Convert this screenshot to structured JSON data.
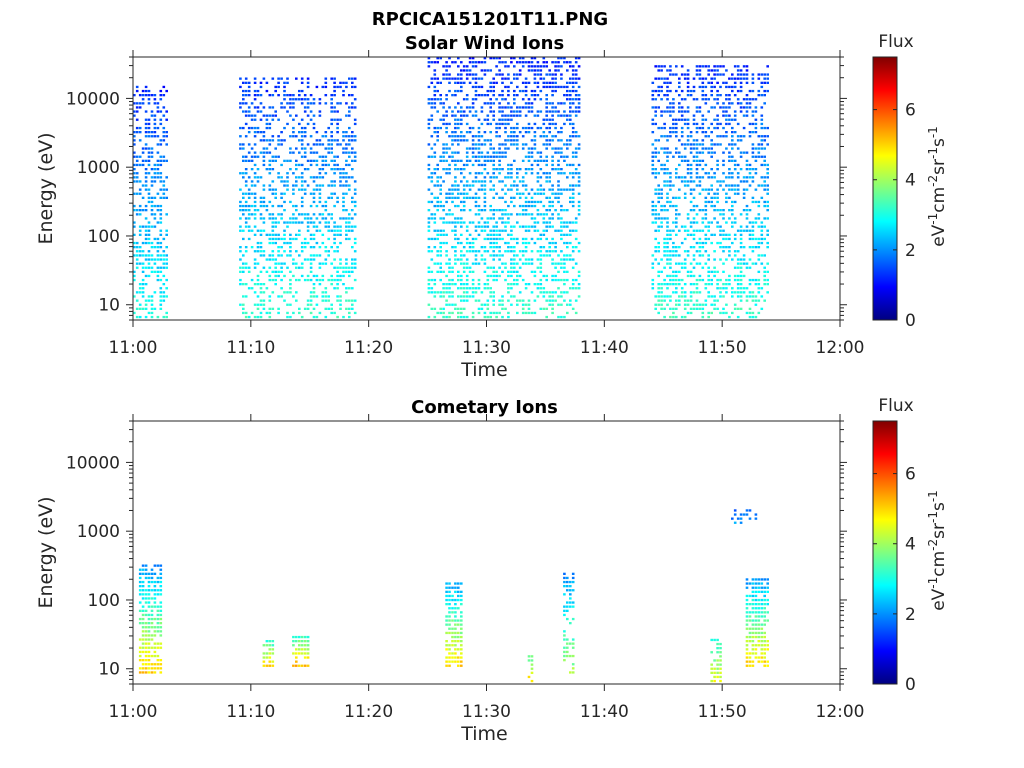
{
  "figure_title": "RPCICA151201T11.PNG",
  "chart_data": [
    {
      "type": "heatmap",
      "title": "Solar Wind Ions",
      "xlabel": "Time",
      "ylabel": "Energy (eV)",
      "y_scale": "log",
      "ylim": [
        6,
        40000
      ],
      "xlim": [
        "11:00",
        "12:00"
      ],
      "x_ticks": [
        "11:00",
        "11:10",
        "11:20",
        "11:30",
        "11:40",
        "11:50",
        "12:00"
      ],
      "y_ticks": [
        "10",
        "100",
        "1000",
        "10000"
      ],
      "colorbar": {
        "title": "Flux",
        "label": "eV-1cm-2sr-1s-1",
        "label_parts": [
          "eV",
          "-1",
          "cm",
          "-2",
          "sr",
          "-1",
          "s",
          "-1"
        ],
        "range": [
          0,
          7.5
        ],
        "ticks": [
          "0",
          "2",
          "4",
          "6"
        ],
        "colormap": "jet"
      },
      "activity": [
        {
          "start": "11:00",
          "end": "11:03",
          "e_min": 6,
          "e_max": 14000,
          "flux_high": 3.0,
          "flux_low": 1.2,
          "density": 0.5
        },
        {
          "start": "11:09",
          "end": "11:19",
          "e_min": 6,
          "e_max": 20000,
          "flux_high": 3.2,
          "flux_low": 1.2,
          "density": 0.42
        },
        {
          "start": "11:25",
          "end": "11:38",
          "e_min": 6,
          "e_max": 35000,
          "flux_high": 3.2,
          "flux_low": 1.2,
          "density": 0.5
        },
        {
          "start": "11:44",
          "end": "11:54",
          "e_min": 6,
          "e_max": 28000,
          "flux_high": 3.2,
          "flux_low": 1.2,
          "density": 0.48
        }
      ]
    },
    {
      "type": "heatmap",
      "title": "Cometary Ions",
      "xlabel": "Time",
      "ylabel": "Energy (eV)",
      "y_scale": "log",
      "ylim": [
        6,
        40000
      ],
      "xlim": [
        "11:00",
        "12:00"
      ],
      "x_ticks": [
        "11:00",
        "11:10",
        "11:20",
        "11:30",
        "11:40",
        "11:50",
        "12:00"
      ],
      "y_ticks": [
        "10",
        "100",
        "1000",
        "10000"
      ],
      "colorbar": {
        "title": "Flux",
        "label": "eV-1cm-2sr-1s-1",
        "label_parts": [
          "eV",
          "-1",
          "cm",
          "-2",
          "sr",
          "-1",
          "s",
          "-1"
        ],
        "range": [
          0,
          7.5
        ],
        "ticks": [
          "0",
          "2",
          "4",
          "6"
        ],
        "colormap": "jet"
      },
      "activity": [
        {
          "start": "11:00.5",
          "end": "11:02.5",
          "e_min": 8,
          "e_max": 300,
          "flux_high": 5.0,
          "flux_low": 2.0,
          "density": 0.8
        },
        {
          "start": "11:11",
          "end": "11:12",
          "e_min": 10,
          "e_max": 25,
          "flux_high": 5.0,
          "flux_low": 3.0,
          "density": 0.8
        },
        {
          "start": "11:13.5",
          "end": "11:15",
          "e_min": 10,
          "e_max": 30,
          "flux_high": 5.2,
          "flux_low": 3.0,
          "density": 0.8
        },
        {
          "start": "11:26.5",
          "end": "11:28",
          "e_min": 10,
          "e_max": 160,
          "flux_high": 5.0,
          "flux_low": 2.2,
          "density": 0.8
        },
        {
          "start": "11:33.5",
          "end": "11:34",
          "e_min": 6,
          "e_max": 14,
          "flux_high": 5.0,
          "flux_low": 3.5,
          "density": 0.8
        },
        {
          "start": "11:36.5",
          "end": "11:37.5",
          "e_min": 8,
          "e_max": 220,
          "flux_high": 4.0,
          "flux_low": 2.0,
          "density": 0.6
        },
        {
          "start": "11:49",
          "end": "11:50",
          "e_min": 6,
          "e_max": 25,
          "flux_high": 4.5,
          "flux_low": 3.0,
          "density": 0.7
        },
        {
          "start": "11:52",
          "end": "11:54",
          "e_min": 10,
          "e_max": 200,
          "flux_high": 5.0,
          "flux_low": 2.0,
          "density": 0.8
        },
        {
          "start": "11:50.5",
          "end": "11:53",
          "e_min": 1200,
          "e_max": 2000,
          "flux_high": 2.0,
          "flux_low": 1.6,
          "density": 0.4
        }
      ]
    }
  ]
}
